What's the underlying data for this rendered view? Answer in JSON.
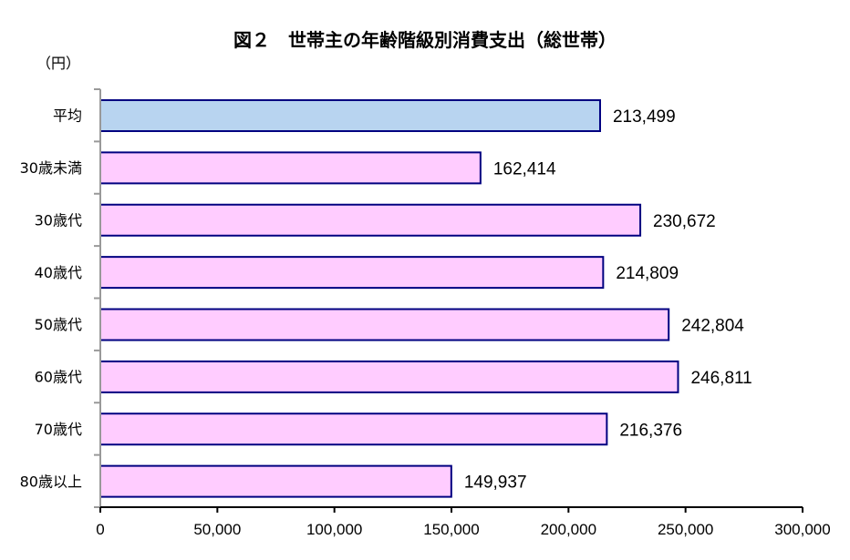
{
  "chart_data": {
    "type": "bar",
    "orientation": "horizontal",
    "title": "図２　世帯主の年齢階級別消費支出（総世帯）",
    "unit_label": "（円）",
    "categories": [
      "平均",
      "30歳未満",
      "30歳代",
      "40歳代",
      "50歳代",
      "60歳代",
      "70歳代",
      "80歳以上"
    ],
    "values": [
      213499,
      162414,
      230672,
      214809,
      242804,
      246811,
      216376,
      149937
    ],
    "value_labels": [
      "213,499",
      "162,414",
      "230,672",
      "214,809",
      "242,804",
      "246,811",
      "216,376",
      "149,937"
    ],
    "xlim": [
      0,
      300000
    ],
    "xticks": [
      0,
      50000,
      100000,
      150000,
      200000,
      250000,
      300000
    ],
    "xtick_labels": [
      "0",
      "50,000",
      "100,000",
      "150,000",
      "200,000",
      "250,000",
      "300,000"
    ],
    "grid": false,
    "colors": {
      "average_bar": "#b8d4f0",
      "bar": "#ffccff",
      "bar_border": "#000080",
      "y_axis": "#999999",
      "x_axis": "#000000"
    }
  }
}
